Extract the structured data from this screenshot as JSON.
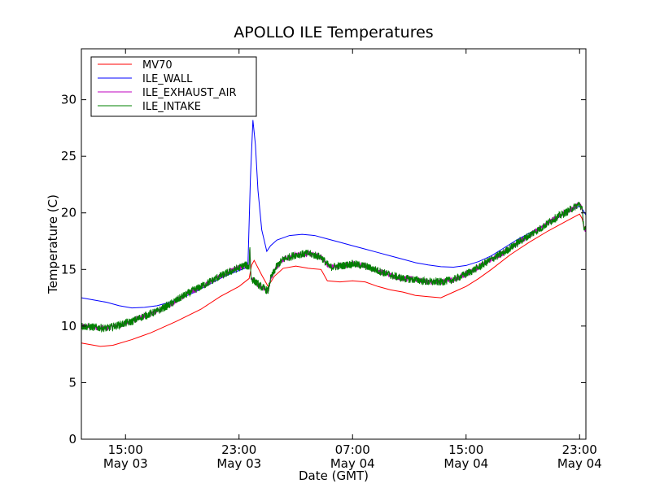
{
  "chart_data": {
    "type": "line",
    "title": "APOLLO ILE Temperatures",
    "xlabel": "Date (GMT)",
    "ylabel": "Temperature (C)",
    "x_unit": "hours (GMT) starting May 03 11:30",
    "xlim": [
      0,
      40
    ],
    "ylim": [
      0,
      34.5
    ],
    "yticks": [
      0,
      5,
      10,
      15,
      20,
      25,
      30
    ],
    "xticks": [
      {
        "x": 3.5,
        "line1": "15:00",
        "line2": "May 03"
      },
      {
        "x": 12.5,
        "line1": "23:00",
        "line2": "May 03"
      },
      {
        "x": 21.5,
        "line1": "07:00",
        "line2": "May 04"
      },
      {
        "x": 30.5,
        "line1": "15:00",
        "line2": "May 04"
      },
      {
        "x": 39.5,
        "line1": "23:00",
        "line2": "May 04"
      }
    ],
    "legend": "top-left",
    "grid": false,
    "series": [
      {
        "name": "MV70",
        "color": "#ff0000",
        "noise": 0,
        "points": [
          [
            0,
            8.5
          ],
          [
            1.5,
            8.2
          ],
          [
            2.5,
            8.3
          ],
          [
            4.0,
            8.8
          ],
          [
            4.5,
            9.0
          ],
          [
            5.5,
            9.4
          ],
          [
            7.5,
            10.4
          ],
          [
            9.5,
            11.5
          ],
          [
            11.0,
            12.6
          ],
          [
            12.5,
            13.5
          ],
          [
            13.3,
            14.2
          ],
          [
            13.5,
            15.4
          ],
          [
            13.7,
            15.8
          ],
          [
            14.3,
            14.5
          ],
          [
            14.8,
            13.5
          ],
          [
            15.3,
            14.4
          ],
          [
            16.0,
            15.1
          ],
          [
            17.0,
            15.3
          ],
          [
            18.0,
            15.1
          ],
          [
            19.0,
            15.0
          ],
          [
            19.5,
            14.0
          ],
          [
            20.5,
            13.9
          ],
          [
            21.5,
            14.0
          ],
          [
            22.5,
            13.9
          ],
          [
            23.5,
            13.5
          ],
          [
            24.5,
            13.2
          ],
          [
            25.5,
            13.0
          ],
          [
            26.5,
            12.7
          ],
          [
            27.5,
            12.6
          ],
          [
            28.5,
            12.5
          ],
          [
            29.5,
            13.0
          ],
          [
            30.5,
            13.5
          ],
          [
            31.5,
            14.2
          ],
          [
            32.5,
            15.0
          ],
          [
            34.0,
            16.3
          ],
          [
            35.5,
            17.4
          ],
          [
            37.0,
            18.4
          ],
          [
            38.5,
            19.3
          ],
          [
            39.5,
            19.9
          ],
          [
            39.7,
            19.5
          ],
          [
            39.85,
            18.8
          ],
          [
            40.0,
            18.5
          ]
        ]
      },
      {
        "name": "ILE_WALL",
        "color": "#0000ff",
        "noise": 0,
        "points": [
          [
            0,
            12.5
          ],
          [
            1,
            12.3
          ],
          [
            2,
            12.1
          ],
          [
            3,
            11.8
          ],
          [
            4,
            11.6
          ],
          [
            5,
            11.65
          ],
          [
            6,
            11.8
          ],
          [
            7,
            12.1
          ],
          [
            8,
            12.5
          ],
          [
            9,
            13.0
          ],
          [
            10,
            13.6
          ],
          [
            11,
            14.2
          ],
          [
            12,
            14.7
          ],
          [
            13.2,
            15.2
          ],
          [
            13.4,
            23.0
          ],
          [
            13.6,
            28.2
          ],
          [
            13.8,
            26.0
          ],
          [
            14.0,
            22.0
          ],
          [
            14.3,
            18.5
          ],
          [
            14.7,
            16.6
          ],
          [
            15.0,
            17.1
          ],
          [
            15.5,
            17.6
          ],
          [
            16.5,
            18.0
          ],
          [
            17.5,
            18.1
          ],
          [
            18.5,
            18.0
          ],
          [
            19.5,
            17.7
          ],
          [
            20.5,
            17.4
          ],
          [
            21.5,
            17.1
          ],
          [
            22.5,
            16.8
          ],
          [
            23.5,
            16.5
          ],
          [
            24.5,
            16.2
          ],
          [
            25.5,
            15.9
          ],
          [
            26.5,
            15.6
          ],
          [
            27.5,
            15.4
          ],
          [
            28.5,
            15.25
          ],
          [
            29.5,
            15.2
          ],
          [
            30.5,
            15.35
          ],
          [
            31.5,
            15.7
          ],
          [
            32.5,
            16.2
          ],
          [
            33.5,
            16.9
          ],
          [
            34.5,
            17.6
          ],
          [
            35.5,
            18.2
          ],
          [
            36.5,
            18.8
          ],
          [
            37.5,
            19.4
          ],
          [
            38.5,
            20.0
          ],
          [
            39.5,
            20.6
          ],
          [
            39.8,
            20.2
          ],
          [
            40.0,
            19.8
          ]
        ]
      },
      {
        "name": "ILE_EXHAUST_AIR",
        "color": "#bf00bf",
        "noise": 0.25,
        "points": [
          [
            0,
            10.0
          ],
          [
            2,
            9.8
          ],
          [
            3,
            10.1
          ],
          [
            4,
            10.4
          ],
          [
            5,
            10.9
          ],
          [
            6,
            11.3
          ],
          [
            7,
            11.9
          ],
          [
            8,
            12.6
          ],
          [
            9,
            13.2
          ],
          [
            10,
            13.8
          ],
          [
            11,
            14.4
          ],
          [
            12,
            14.9
          ],
          [
            13.0,
            15.4
          ],
          [
            13.3,
            15.2
          ],
          [
            13.35,
            17.2
          ],
          [
            13.45,
            14.2
          ],
          [
            13.8,
            13.9
          ],
          [
            14.2,
            13.5
          ],
          [
            14.8,
            13.1
          ],
          [
            15.0,
            14.2
          ],
          [
            15.5,
            15.3
          ],
          [
            16.0,
            15.9
          ],
          [
            17.0,
            16.3
          ],
          [
            18.0,
            16.4
          ],
          [
            19.0,
            16.1
          ],
          [
            19.7,
            15.2
          ],
          [
            20.5,
            15.3
          ],
          [
            21.5,
            15.5
          ],
          [
            22.5,
            15.3
          ],
          [
            23.5,
            14.9
          ],
          [
            24.5,
            14.5
          ],
          [
            25.5,
            14.2
          ],
          [
            26.5,
            14.1
          ],
          [
            27.5,
            13.9
          ],
          [
            28.5,
            13.9
          ],
          [
            29.5,
            14.1
          ],
          [
            30.5,
            14.6
          ],
          [
            31.5,
            15.2
          ],
          [
            32.5,
            15.9
          ],
          [
            33.5,
            16.5
          ],
          [
            34.5,
            17.3
          ],
          [
            35.5,
            18.0
          ],
          [
            36.5,
            18.7
          ],
          [
            37.5,
            19.5
          ],
          [
            38.5,
            20.1
          ],
          [
            39.5,
            20.8
          ],
          [
            39.7,
            20.3
          ],
          [
            39.85,
            18.6
          ],
          [
            40.0,
            18.5
          ]
        ]
      },
      {
        "name": "ILE_INTAKE",
        "color": "#008000",
        "noise": 0.35,
        "points": [
          [
            0,
            10.0
          ],
          [
            2,
            9.8
          ],
          [
            3,
            10.1
          ],
          [
            4,
            10.4
          ],
          [
            5,
            10.9
          ],
          [
            6,
            11.3
          ],
          [
            7,
            11.9
          ],
          [
            8,
            12.6
          ],
          [
            9,
            13.2
          ],
          [
            10,
            13.8
          ],
          [
            11,
            14.4
          ],
          [
            12,
            14.9
          ],
          [
            13.0,
            15.4
          ],
          [
            13.3,
            15.2
          ],
          [
            13.35,
            17.2
          ],
          [
            13.45,
            14.2
          ],
          [
            13.8,
            13.9
          ],
          [
            14.2,
            13.5
          ],
          [
            14.8,
            13.1
          ],
          [
            15.0,
            14.2
          ],
          [
            15.5,
            15.3
          ],
          [
            16.0,
            15.9
          ],
          [
            17.0,
            16.3
          ],
          [
            18.0,
            16.4
          ],
          [
            19.0,
            16.1
          ],
          [
            19.7,
            15.2
          ],
          [
            20.5,
            15.3
          ],
          [
            21.5,
            15.5
          ],
          [
            22.5,
            15.3
          ],
          [
            23.5,
            14.9
          ],
          [
            24.5,
            14.5
          ],
          [
            25.5,
            14.2
          ],
          [
            26.5,
            14.1
          ],
          [
            27.5,
            13.9
          ],
          [
            28.5,
            13.9
          ],
          [
            29.5,
            14.1
          ],
          [
            30.5,
            14.6
          ],
          [
            31.5,
            15.2
          ],
          [
            32.5,
            15.9
          ],
          [
            33.5,
            16.5
          ],
          [
            34.5,
            17.3
          ],
          [
            35.5,
            18.0
          ],
          [
            36.5,
            18.7
          ],
          [
            37.5,
            19.5
          ],
          [
            38.5,
            20.1
          ],
          [
            39.5,
            20.8
          ],
          [
            39.7,
            20.3
          ],
          [
            39.85,
            18.6
          ],
          [
            40.0,
            18.5
          ]
        ]
      }
    ]
  }
}
